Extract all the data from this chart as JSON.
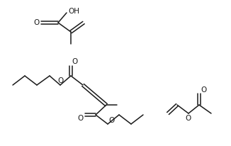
{
  "bg_color": "#ffffff",
  "line_color": "#1a1a1a",
  "text_color": "#1a1a1a",
  "line_width": 1.1,
  "font_size": 7.5,
  "figsize": [
    3.26,
    2.06
  ],
  "dpi": 100
}
